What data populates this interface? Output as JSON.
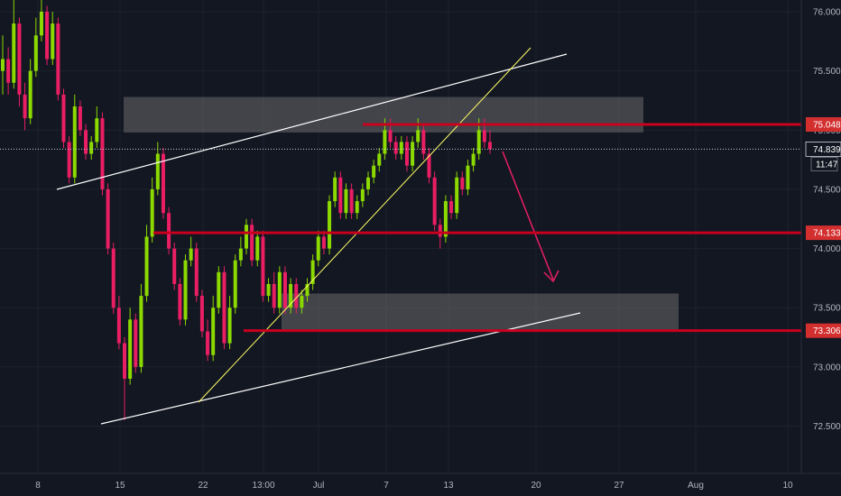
{
  "colors": {
    "background": "#131722",
    "grid": "#1e222d",
    "up_candle": "#8cd900",
    "down_candle": "#e91e63",
    "level_line": "#c8001e",
    "level_badge": "#d32f2f",
    "trend_line": "#ffffff",
    "rising_line": "#ffff66",
    "zone_fill": "#7d7d7d",
    "arrow": "#e91e63",
    "axis_text": "#b2b5be"
  },
  "chart_data": {
    "type": "candlestick",
    "title": "",
    "xlabel": "",
    "ylabel": "",
    "ylim": [
      72.2,
      76.15
    ],
    "grid": true,
    "x_ticks": [
      "8",
      "15",
      "22",
      "13:00",
      "Jul",
      "7",
      "13",
      "20",
      "27",
      "Aug",
      "10"
    ],
    "y_ticks": [
      "76.000",
      "75.500",
      "75.000",
      "74.500",
      "74.000",
      "73.500",
      "73.000",
      "72.500"
    ],
    "current_price": "74.839",
    "countdown": "11:47",
    "price_levels": [
      {
        "label": "75.048",
        "value": 75.048
      },
      {
        "label": "74.133",
        "value": 74.133
      },
      {
        "label": "73.306",
        "value": 73.306
      }
    ],
    "zones": [
      {
        "name": "resistance-zone",
        "low": 74.98,
        "high": 75.28
      },
      {
        "name": "support-zone",
        "low": 73.3,
        "high": 73.62
      }
    ],
    "closes": [
      75.6,
      75.4,
      75.9,
      75.3,
      75.1,
      75.5,
      75.8,
      76.0,
      75.6,
      75.9,
      75.3,
      74.9,
      74.6,
      75.2,
      75.0,
      74.8,
      74.9,
      75.1,
      74.5,
      74.0,
      73.5,
      73.2,
      72.9,
      73.4,
      73.0,
      73.6,
      74.1,
      74.5,
      74.8,
      74.3,
      74.0,
      73.7,
      73.4,
      73.9,
      74.0,
      73.6,
      73.3,
      73.1,
      73.5,
      73.8,
      73.2,
      73.5,
      73.9,
      74.0,
      74.2,
      73.9,
      74.1,
      73.6,
      73.7,
      73.5,
      73.8,
      73.5,
      73.7,
      73.5,
      73.6,
      73.7,
      73.9,
      74.1,
      74.0,
      74.4,
      74.6,
      74.3,
      74.5,
      74.3,
      74.4,
      74.5,
      74.6,
      74.7,
      74.8,
      75.0,
      74.9,
      74.8,
      74.9,
      74.7,
      74.9,
      75.0,
      74.8,
      74.6,
      74.2,
      74.1,
      74.4,
      74.3,
      74.6,
      74.5,
      74.7,
      74.8,
      75.0,
      74.9,
      74.84
    ],
    "opens": [
      75.5,
      75.6,
      75.4,
      75.9,
      75.3,
      75.1,
      75.5,
      75.8,
      76.0,
      75.6,
      75.9,
      75.3,
      74.9,
      74.6,
      75.2,
      75.0,
      74.8,
      74.9,
      75.1,
      74.5,
      74.0,
      73.5,
      73.2,
      72.9,
      73.4,
      73.0,
      73.6,
      74.1,
      74.5,
      74.8,
      74.3,
      74.0,
      73.7,
      73.4,
      73.9,
      74.0,
      73.6,
      73.3,
      73.1,
      73.5,
      73.8,
      73.2,
      73.5,
      73.9,
      74.0,
      74.2,
      73.9,
      74.1,
      73.6,
      73.7,
      73.5,
      73.8,
      73.5,
      73.7,
      73.5,
      73.6,
      73.7,
      73.9,
      74.1,
      74.0,
      74.4,
      74.6,
      74.3,
      74.5,
      74.3,
      74.4,
      74.5,
      74.6,
      74.7,
      74.8,
      75.0,
      74.9,
      74.8,
      74.9,
      74.7,
      74.9,
      75.0,
      74.8,
      74.6,
      74.2,
      74.1,
      74.4,
      74.3,
      74.6,
      74.5,
      74.7,
      74.8,
      75.0,
      74.9
    ],
    "highs": [
      75.8,
      75.7,
      76.1,
      75.95,
      75.4,
      75.6,
      75.95,
      76.1,
      76.05,
      76.0,
      75.95,
      75.35,
      74.95,
      75.3,
      75.25,
      75.05,
      74.95,
      75.2,
      75.15,
      74.55,
      74.05,
      73.6,
      73.25,
      73.5,
      73.45,
      73.7,
      74.2,
      74.6,
      74.9,
      74.85,
      74.35,
      74.05,
      73.75,
      73.95,
      74.1,
      74.05,
      73.65,
      73.4,
      73.6,
      73.85,
      73.85,
      73.6,
      73.95,
      74.1,
      74.25,
      74.25,
      74.15,
      74.15,
      73.75,
      73.8,
      73.85,
      73.85,
      73.75,
      73.75,
      73.65,
      73.75,
      73.95,
      74.15,
      74.15,
      74.45,
      74.65,
      74.65,
      74.55,
      74.55,
      74.45,
      74.55,
      74.65,
      74.75,
      74.85,
      75.1,
      75.1,
      74.95,
      74.95,
      74.95,
      74.95,
      75.1,
      75.05,
      74.85,
      74.65,
      74.25,
      74.45,
      74.45,
      74.65,
      74.65,
      74.75,
      74.85,
      75.1,
      75.1,
      75.0
    ],
    "lows": [
      75.3,
      75.3,
      75.35,
      75.2,
      75.0,
      75.05,
      75.45,
      75.75,
      75.55,
      75.55,
      75.25,
      74.85,
      74.55,
      74.55,
      74.95,
      74.75,
      74.75,
      74.85,
      74.45,
      73.95,
      73.45,
      73.15,
      72.55,
      72.85,
      72.95,
      72.95,
      73.55,
      74.05,
      74.45,
      74.25,
      73.95,
      73.65,
      73.35,
      73.35,
      73.85,
      73.55,
      73.25,
      73.05,
      73.05,
      73.45,
      73.15,
      73.15,
      73.45,
      73.85,
      73.95,
      73.85,
      73.85,
      73.55,
      73.55,
      73.45,
      73.45,
      73.45,
      73.45,
      73.45,
      73.45,
      73.55,
      73.65,
      73.85,
      73.95,
      73.95,
      74.35,
      74.25,
      74.25,
      74.25,
      74.25,
      74.35,
      74.45,
      74.55,
      74.65,
      74.75,
      74.85,
      74.75,
      74.75,
      74.65,
      74.65,
      74.85,
      74.75,
      74.55,
      74.15,
      74.0,
      74.05,
      74.25,
      74.25,
      74.45,
      74.45,
      74.65,
      74.75,
      74.85,
      74.8
    ]
  }
}
